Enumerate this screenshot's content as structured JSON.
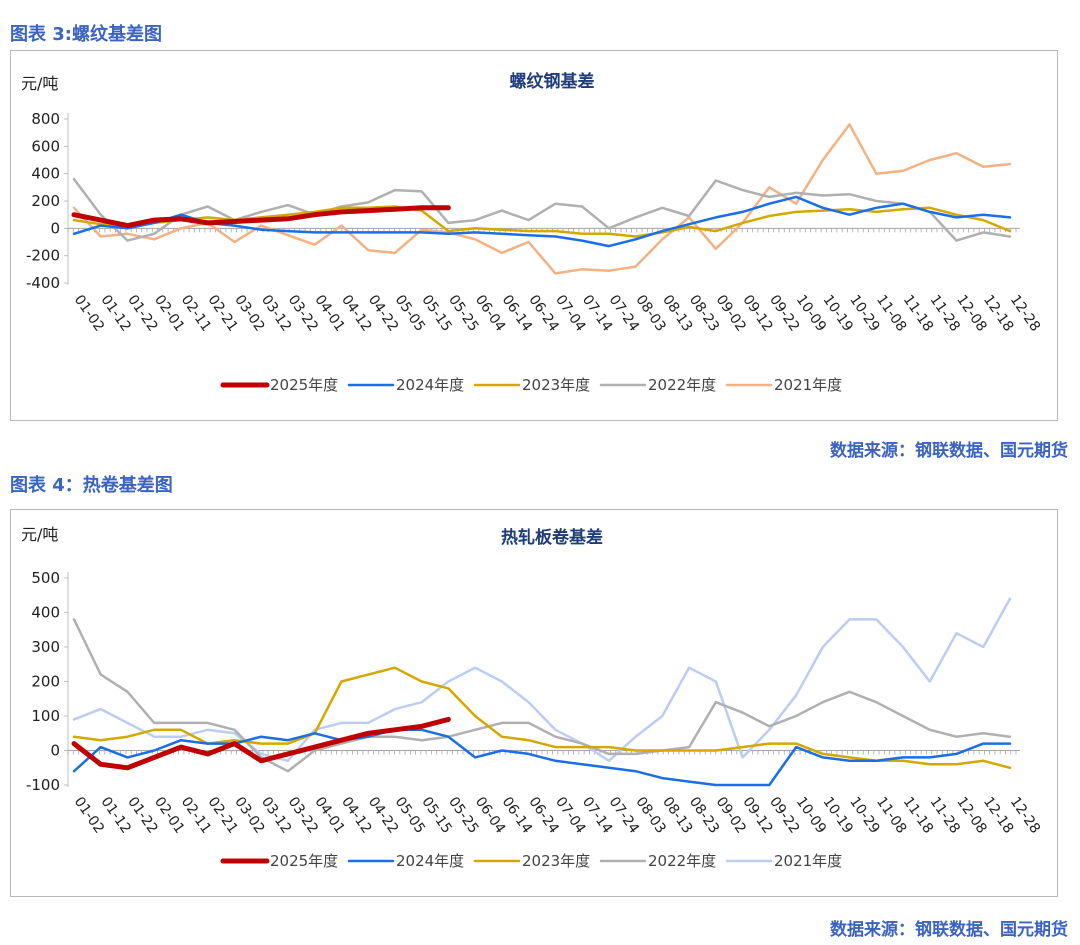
{
  "figure1": {
    "caption": "图表 3:螺纹基差图",
    "source": "数据来源：钢联数据、国元期货"
  },
  "figure2": {
    "caption": "图表 4：热卷基差图",
    "source": "数据来源：钢联数据、国元期货"
  },
  "chart_data": [
    {
      "type": "line",
      "title": "螺纹钢基差",
      "ylabel": "元/吨",
      "xlabel": "",
      "ylim": [
        -400,
        800
      ],
      "yticks": [
        -400,
        -200,
        0,
        200,
        400,
        600,
        800
      ],
      "categories": [
        "01-02",
        "01-12",
        "01-22",
        "02-01",
        "02-11",
        "02-21",
        "03-02",
        "03-12",
        "03-22",
        "04-01",
        "04-12",
        "04-22",
        "05-05",
        "05-15",
        "05-25",
        "06-04",
        "06-14",
        "06-24",
        "07-04",
        "07-14",
        "07-24",
        "08-03",
        "08-13",
        "08-23",
        "09-02",
        "09-12",
        "09-22",
        "10-09",
        "10-19",
        "10-29",
        "11-08",
        "11-18",
        "11-28",
        "12-08",
        "12-18",
        "12-28"
      ],
      "legend_position": "bottom",
      "series": [
        {
          "name": "2025年度",
          "color": "#c00000",
          "width": 5,
          "values": [
            100,
            60,
            20,
            60,
            70,
            40,
            50,
            60,
            70,
            100,
            120,
            130,
            140,
            150,
            150,
            null,
            null,
            null,
            null,
            null,
            null,
            null,
            null,
            null,
            null,
            null,
            null,
            null,
            null,
            null,
            null,
            null,
            null,
            null,
            null,
            null
          ]
        },
        {
          "name": "2024年度",
          "color": "#1a6fe8",
          "width": 2.5,
          "values": [
            -40,
            20,
            0,
            40,
            100,
            40,
            20,
            -10,
            -20,
            -30,
            -30,
            -30,
            -30,
            -30,
            -40,
            -30,
            -40,
            -50,
            -60,
            -90,
            -130,
            -80,
            -20,
            30,
            80,
            120,
            180,
            230,
            150,
            100,
            150,
            180,
            120,
            80,
            100,
            80
          ]
        },
        {
          "name": "2023年度",
          "color": "#d4a800",
          "width": 2.5,
          "values": [
            60,
            30,
            20,
            40,
            60,
            80,
            60,
            80,
            100,
            120,
            150,
            150,
            160,
            130,
            -20,
            0,
            -10,
            -20,
            -20,
            -40,
            -40,
            -60,
            -30,
            10,
            -20,
            40,
            90,
            120,
            130,
            140,
            120,
            140,
            150,
            100,
            60,
            -20
          ]
        },
        {
          "name": "2022年度",
          "color": "#b0b0b0",
          "width": 2.5,
          "values": [
            360,
            100,
            -90,
            -40,
            100,
            160,
            60,
            120,
            170,
            100,
            160,
            190,
            280,
            270,
            40,
            60,
            130,
            60,
            180,
            160,
            0,
            80,
            150,
            90,
            350,
            280,
            230,
            260,
            240,
            250,
            200,
            180,
            120,
            -90,
            -30,
            -60
          ]
        },
        {
          "name": "2021年度",
          "color": "#f4b183",
          "width": 2.5,
          "values": [
            150,
            -60,
            -40,
            -80,
            0,
            40,
            -100,
            20,
            -50,
            -120,
            20,
            -160,
            -180,
            -10,
            -30,
            -80,
            -180,
            -100,
            -330,
            -300,
            -310,
            -280,
            -80,
            80,
            -150,
            40,
            300,
            180,
            500,
            760,
            400,
            420,
            500,
            550,
            450,
            470
          ]
        }
      ]
    },
    {
      "type": "line",
      "title": "热轧板卷基差",
      "ylabel": "元/吨",
      "xlabel": "",
      "ylim": [
        -100,
        500
      ],
      "yticks": [
        -100,
        0,
        100,
        200,
        300,
        400,
        500
      ],
      "categories": [
        "01-02",
        "01-12",
        "01-22",
        "02-01",
        "02-11",
        "02-21",
        "03-02",
        "03-12",
        "03-22",
        "04-01",
        "04-12",
        "04-22",
        "05-05",
        "05-15",
        "05-25",
        "06-04",
        "06-14",
        "06-24",
        "07-04",
        "07-14",
        "07-24",
        "08-03",
        "08-13",
        "08-23",
        "09-02",
        "09-12",
        "09-22",
        "10-09",
        "10-19",
        "10-29",
        "11-08",
        "11-18",
        "11-28",
        "12-08",
        "12-18",
        "12-28"
      ],
      "legend_position": "bottom",
      "series": [
        {
          "name": "2025年度",
          "color": "#c00000",
          "width": 5,
          "values": [
            20,
            -40,
            -50,
            -20,
            10,
            -10,
            20,
            -30,
            -10,
            10,
            30,
            50,
            60,
            70,
            90,
            null,
            null,
            null,
            null,
            null,
            null,
            null,
            null,
            null,
            null,
            null,
            null,
            null,
            null,
            null,
            null,
            null,
            null,
            null,
            null,
            null
          ]
        },
        {
          "name": "2024年度",
          "color": "#1a6fe8",
          "width": 2.5,
          "values": [
            -60,
            10,
            -20,
            0,
            30,
            20,
            20,
            40,
            30,
            50,
            30,
            40,
            60,
            60,
            40,
            -20,
            0,
            -10,
            -30,
            -40,
            -50,
            -60,
            -80,
            -90,
            -100,
            -100,
            -100,
            10,
            -20,
            -30,
            -30,
            -20,
            -20,
            -10,
            20,
            20
          ]
        },
        {
          "name": "2023年度",
          "color": "#d4a800",
          "width": 2.5,
          "values": [
            40,
            30,
            40,
            60,
            60,
            20,
            30,
            20,
            20,
            50,
            200,
            220,
            240,
            200,
            180,
            100,
            40,
            30,
            10,
            10,
            10,
            0,
            0,
            0,
            0,
            10,
            20,
            20,
            -10,
            -20,
            -30,
            -30,
            -40,
            -40,
            -30,
            -50
          ]
        },
        {
          "name": "2022年度",
          "color": "#b0b0b0",
          "width": 2.5,
          "values": [
            380,
            220,
            170,
            80,
            80,
            80,
            60,
            -20,
            -60,
            0,
            20,
            40,
            40,
            30,
            40,
            60,
            80,
            80,
            40,
            20,
            -10,
            -10,
            0,
            10,
            140,
            110,
            70,
            100,
            140,
            170,
            140,
            100,
            60,
            40,
            50,
            40
          ]
        },
        {
          "name": "2021年度",
          "color": "#bccdf4",
          "width": 2.5,
          "values": [
            90,
            120,
            80,
            40,
            40,
            60,
            50,
            -10,
            -30,
            60,
            80,
            80,
            120,
            140,
            200,
            240,
            200,
            140,
            60,
            20,
            -30,
            40,
            100,
            240,
            200,
            -20,
            60,
            160,
            300,
            380,
            380,
            300,
            200,
            340,
            300,
            440
          ]
        }
      ]
    }
  ]
}
